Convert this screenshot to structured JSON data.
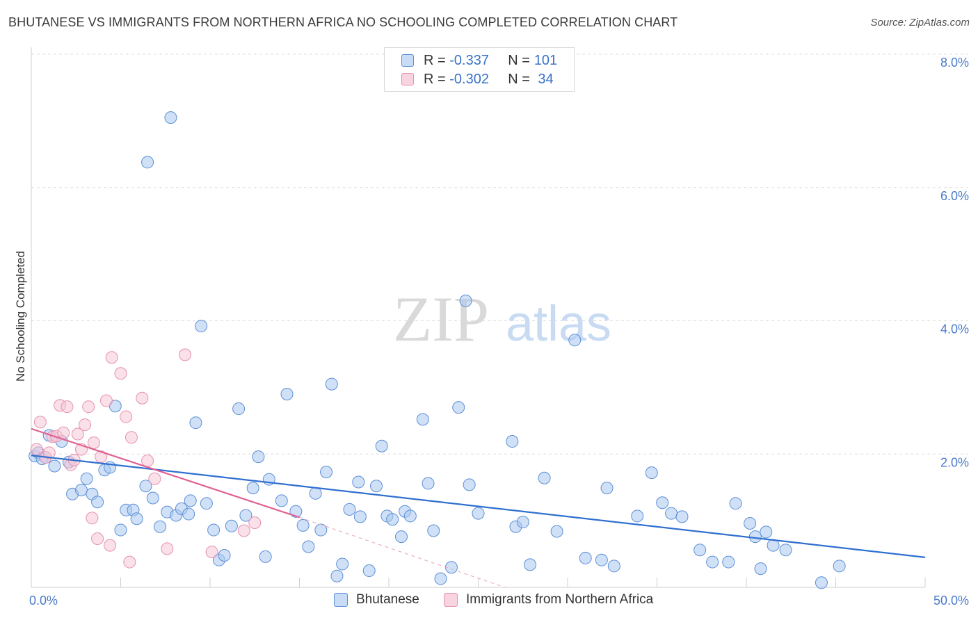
{
  "header": {
    "title": "BHUTANESE VS IMMIGRANTS FROM NORTHERN AFRICA NO SCHOOLING COMPLETED CORRELATION CHART",
    "source": "Source: ZipAtlas.com"
  },
  "watermark": {
    "zip": "ZIP",
    "atlas": "atlas"
  },
  "legend": {
    "r_label": "R =",
    "n_label": "N =",
    "rows": [
      {
        "r": "-0.337",
        "n": "101",
        "color": "#a9c8f0"
      },
      {
        "r": "-0.302",
        "n": "34",
        "color": "#f5bcd0"
      }
    ]
  },
  "colors": {
    "blue_fill": "#a9c8f0",
    "blue_stroke": "#5b8fd6",
    "blue_line": "#2f6fd0",
    "pink_fill": "#f5c6d6",
    "pink_stroke": "#e691b0",
    "pink_line": "#e06393",
    "grid": "#dcdcdc",
    "axis_text": "#4a7bc8"
  },
  "chart_data": {
    "type": "scatter",
    "title": "BHUTANESE VS IMMIGRANTS FROM NORTHERN AFRICA NO SCHOOLING COMPLETED CORRELATION CHART",
    "xlabel": "",
    "ylabel": "No Schooling Completed",
    "xlim": [
      0,
      50
    ],
    "ylim": [
      0,
      8
    ],
    "x_ticks": [
      "0.0%",
      "50.0%"
    ],
    "y_ticks": [
      {
        "value": 2,
        "label": "2.0%"
      },
      {
        "value": 4,
        "label": "4.0%"
      },
      {
        "value": 6,
        "label": "6.0%"
      },
      {
        "value": 8,
        "label": "8.0%"
      }
    ],
    "series": [
      {
        "name": "Bhutanese",
        "r": -0.337,
        "n": 101,
        "trend": {
          "x0": 0,
          "y0": 1.98,
          "x1": 50,
          "y1": 0.45
        },
        "points": [
          [
            0.2,
            1.97
          ],
          [
            0.4,
            2.02
          ],
          [
            0.6,
            1.93
          ],
          [
            0.8,
            1.95
          ],
          [
            1.0,
            2.28
          ],
          [
            1.3,
            1.82
          ],
          [
            1.7,
            2.19
          ],
          [
            2.1,
            1.88
          ],
          [
            2.3,
            1.4
          ],
          [
            2.8,
            1.46
          ],
          [
            3.1,
            1.63
          ],
          [
            3.4,
            1.4
          ],
          [
            3.7,
            1.28
          ],
          [
            4.1,
            1.76
          ],
          [
            4.4,
            1.8
          ],
          [
            4.7,
            2.72
          ],
          [
            5.0,
            0.86
          ],
          [
            5.3,
            1.16
          ],
          [
            5.7,
            1.16
          ],
          [
            5.9,
            1.03
          ],
          [
            6.4,
            1.52
          ],
          [
            6.8,
            1.34
          ],
          [
            7.2,
            0.91
          ],
          [
            7.6,
            1.13
          ],
          [
            8.1,
            1.08
          ],
          [
            8.4,
            1.18
          ],
          [
            8.9,
            1.3
          ],
          [
            6.5,
            6.38
          ],
          [
            7.8,
            7.05
          ],
          [
            9.5,
            3.92
          ],
          [
            9.2,
            2.47
          ],
          [
            8.8,
            1.1
          ],
          [
            9.8,
            1.26
          ],
          [
            10.2,
            0.86
          ],
          [
            10.5,
            0.41
          ],
          [
            10.8,
            0.48
          ],
          [
            11.2,
            0.92
          ],
          [
            11.6,
            2.68
          ],
          [
            12.0,
            1.08
          ],
          [
            12.4,
            1.49
          ],
          [
            12.7,
            1.96
          ],
          [
            13.1,
            0.46
          ],
          [
            13.3,
            1.62
          ],
          [
            14.0,
            1.3
          ],
          [
            14.3,
            2.9
          ],
          [
            14.8,
            1.14
          ],
          [
            15.2,
            0.93
          ],
          [
            15.5,
            0.61
          ],
          [
            15.9,
            1.41
          ],
          [
            16.2,
            0.86
          ],
          [
            16.5,
            1.73
          ],
          [
            16.8,
            3.05
          ],
          [
            17.1,
            0.17
          ],
          [
            17.4,
            0.35
          ],
          [
            17.8,
            1.17
          ],
          [
            18.3,
            1.58
          ],
          [
            18.4,
            1.06
          ],
          [
            18.9,
            0.25
          ],
          [
            19.3,
            1.52
          ],
          [
            19.6,
            2.12
          ],
          [
            19.9,
            1.07
          ],
          [
            20.2,
            1.02
          ],
          [
            20.7,
            0.76
          ],
          [
            20.9,
            1.14
          ],
          [
            21.2,
            1.07
          ],
          [
            21.9,
            2.52
          ],
          [
            22.2,
            1.56
          ],
          [
            22.5,
            0.85
          ],
          [
            22.9,
            0.13
          ],
          [
            23.5,
            0.3
          ],
          [
            23.9,
            2.7
          ],
          [
            24.3,
            4.3
          ],
          [
            24.5,
            1.54
          ],
          [
            25.0,
            1.11
          ],
          [
            26.9,
            2.19
          ],
          [
            27.1,
            0.91
          ],
          [
            27.5,
            0.98
          ],
          [
            27.9,
            0.34
          ],
          [
            28.7,
            1.64
          ],
          [
            29.4,
            0.84
          ],
          [
            30.4,
            3.71
          ],
          [
            31.0,
            0.44
          ],
          [
            31.9,
            0.41
          ],
          [
            32.2,
            1.49
          ],
          [
            32.6,
            0.32
          ],
          [
            33.9,
            1.07
          ],
          [
            34.7,
            1.72
          ],
          [
            35.3,
            1.27
          ],
          [
            35.8,
            1.11
          ],
          [
            36.4,
            1.06
          ],
          [
            37.4,
            0.56
          ],
          [
            38.1,
            0.38
          ],
          [
            39.0,
            0.38
          ],
          [
            39.4,
            1.26
          ],
          [
            40.2,
            0.96
          ],
          [
            40.5,
            0.76
          ],
          [
            40.8,
            0.28
          ],
          [
            41.1,
            0.83
          ],
          [
            41.5,
            0.63
          ],
          [
            42.2,
            0.56
          ],
          [
            44.2,
            0.07
          ],
          [
            45.2,
            0.32
          ]
        ]
      },
      {
        "name": "Immigrants from Northern Africa",
        "r": -0.302,
        "n": 34,
        "trend": {
          "x0": 0,
          "y0": 2.38,
          "x1": 15,
          "y1": 1.05
        },
        "trend_ext": {
          "x0": 15,
          "y0": 1.05,
          "x1": 26.5,
          "y1": 0.0
        },
        "points": [
          [
            0.3,
            2.07
          ],
          [
            0.5,
            2.48
          ],
          [
            0.8,
            1.95
          ],
          [
            1.0,
            2.02
          ],
          [
            1.2,
            2.26
          ],
          [
            1.4,
            2.27
          ],
          [
            1.6,
            2.73
          ],
          [
            1.8,
            2.32
          ],
          [
            2.0,
            2.71
          ],
          [
            2.2,
            1.84
          ],
          [
            2.4,
            1.91
          ],
          [
            2.6,
            2.3
          ],
          [
            2.8,
            2.07
          ],
          [
            3.0,
            2.44
          ],
          [
            3.2,
            2.71
          ],
          [
            3.4,
            1.04
          ],
          [
            3.5,
            2.17
          ],
          [
            3.7,
            0.73
          ],
          [
            3.9,
            1.96
          ],
          [
            4.2,
            2.8
          ],
          [
            4.4,
            0.63
          ],
          [
            4.5,
            3.45
          ],
          [
            5.0,
            3.21
          ],
          [
            5.3,
            2.56
          ],
          [
            5.5,
            0.38
          ],
          [
            5.6,
            2.25
          ],
          [
            6.2,
            2.84
          ],
          [
            6.5,
            1.9
          ],
          [
            6.9,
            1.63
          ],
          [
            7.6,
            0.58
          ],
          [
            8.6,
            3.49
          ],
          [
            10.1,
            0.53
          ],
          [
            11.9,
            0.85
          ],
          [
            12.5,
            0.97
          ]
        ]
      }
    ]
  },
  "bottom_legend": {
    "items": [
      {
        "label": "Bhutanese"
      },
      {
        "label": "Immigrants from Northern Africa"
      }
    ]
  }
}
